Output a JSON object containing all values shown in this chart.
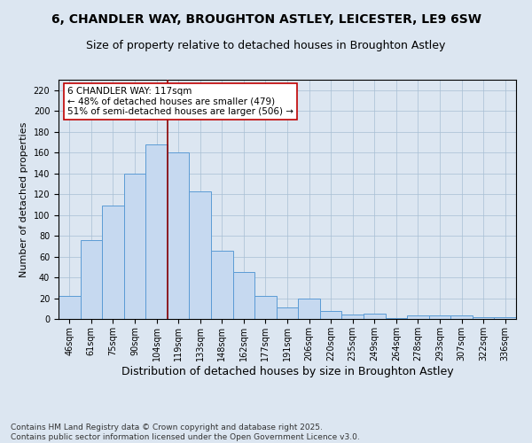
{
  "title_line1": "6, CHANDLER WAY, BROUGHTON ASTLEY, LEICESTER, LE9 6SW",
  "title_line2": "Size of property relative to detached houses in Broughton Astley",
  "xlabel": "Distribution of detached houses by size in Broughton Astley",
  "ylabel": "Number of detached properties",
  "categories": [
    "46sqm",
    "61sqm",
    "75sqm",
    "90sqm",
    "104sqm",
    "119sqm",
    "133sqm",
    "148sqm",
    "162sqm",
    "177sqm",
    "191sqm",
    "206sqm",
    "220sqm",
    "235sqm",
    "249sqm",
    "264sqm",
    "278sqm",
    "293sqm",
    "307sqm",
    "322sqm",
    "336sqm"
  ],
  "values": [
    22,
    76,
    109,
    140,
    168,
    160,
    123,
    66,
    45,
    22,
    11,
    20,
    8,
    4,
    5,
    1,
    3,
    3,
    3,
    2,
    2
  ],
  "bar_color": "#c6d9f0",
  "bar_edge_color": "#5b9bd5",
  "vline_x_index": 5,
  "vline_color": "#8b0000",
  "annotation_text": "6 CHANDLER WAY: 117sqm\n← 48% of detached houses are smaller (479)\n51% of semi-detached houses are larger (506) →",
  "annotation_box_color": "#ffffff",
  "annotation_box_edge": "#c00000",
  "ylim": [
    0,
    230
  ],
  "yticks": [
    0,
    20,
    40,
    60,
    80,
    100,
    120,
    140,
    160,
    180,
    200,
    220
  ],
  "background_color": "#dce6f1",
  "footer_text": "Contains HM Land Registry data © Crown copyright and database right 2025.\nContains public sector information licensed under the Open Government Licence v3.0.",
  "title_fontsize": 10,
  "subtitle_fontsize": 9,
  "xlabel_fontsize": 9,
  "ylabel_fontsize": 8,
  "tick_fontsize": 7,
  "annotation_fontsize": 7.5,
  "footer_fontsize": 6.5
}
